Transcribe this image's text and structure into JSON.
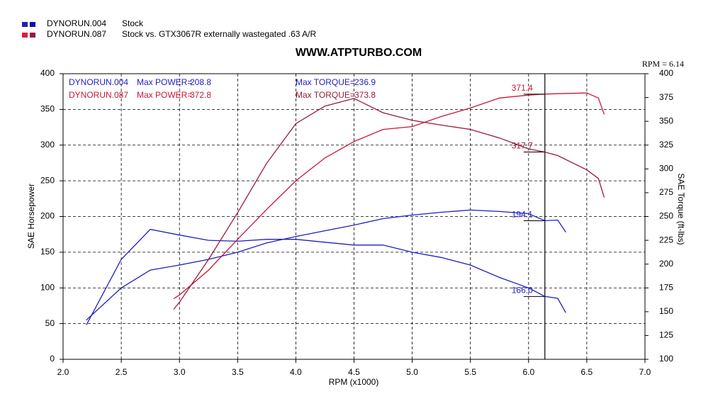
{
  "chart_data": {
    "type": "line",
    "title": "WWW.ATPTURBO.COM",
    "x_label": "RPM (x1000)",
    "y_label": "SAE Horsepower",
    "y2_label": "SAE Torque (ft-lbs)",
    "xlim": [
      2,
      7
    ],
    "ylim": [
      0,
      400
    ],
    "y2lim": [
      100,
      400
    ],
    "xticks": [
      {
        "value": 2,
        "label": "2.0"
      },
      {
        "value": 2.5,
        "label": "2.5"
      },
      {
        "value": 3,
        "label": "3.0"
      },
      {
        "value": 3.5,
        "label": "3.5"
      },
      {
        "value": 4,
        "label": "4.0"
      },
      {
        "value": 4.5,
        "label": "4.5"
      },
      {
        "value": 5,
        "label": "5.0"
      },
      {
        "value": 5.5,
        "label": "5.5"
      },
      {
        "value": 6,
        "label": "6.0"
      },
      {
        "value": 6.5,
        "label": "6.5"
      },
      {
        "value": 7,
        "label": "7.0"
      }
    ],
    "yticks": [
      0,
      50,
      100,
      150,
      200,
      250,
      300,
      350,
      400
    ],
    "y2ticks": [
      100,
      125,
      150,
      175,
      200,
      225,
      250,
      275,
      300,
      325,
      350,
      375,
      400
    ],
    "grid": true,
    "cursor": {
      "value": 6.14,
      "label": "RPM = 6.14"
    },
    "max_power_label": "Max POWER=",
    "max_torque_label": "Max TORQUE=",
    "series": [
      {
        "name": "DYNORUN.004",
        "description": "Stock",
        "color": "#1f1fc4",
        "legend_colors": [
          "#1f1fc4",
          "#1010a0"
        ],
        "max_power": 208.8,
        "max_torque": 236.9,
        "power": {
          "x": [
            2.2,
            2.5,
            2.75,
            3.0,
            3.25,
            3.5,
            3.75,
            4.0,
            4.25,
            4.5,
            4.75,
            5.0,
            5.25,
            5.5,
            5.75,
            6.0,
            6.14,
            6.25,
            6.32
          ],
          "values": [
            55,
            100,
            125,
            132,
            140,
            150,
            163,
            172,
            180,
            188,
            197,
            202,
            206,
            209,
            207,
            204,
            194.1,
            195,
            178
          ],
          "cursor_value": 194.1
        },
        "torque": {
          "axis": "y2",
          "x": [
            2.2,
            2.5,
            2.75,
            3.0,
            3.25,
            3.5,
            3.75,
            4.0,
            4.25,
            4.5,
            4.75,
            5.0,
            5.25,
            5.5,
            5.75,
            6.0,
            6.14,
            6.25,
            6.32
          ],
          "values": [
            136,
            205,
            236.5,
            230.5,
            225,
            224,
            226,
            226,
            223,
            220,
            220,
            212.5,
            207,
            199,
            186,
            175,
            166,
            164,
            149
          ],
          "cursor_value": {
            "value": 166,
            "label": "166.0"
          }
        }
      },
      {
        "name": "DYNORUN.087",
        "description": "Stock vs. GTX3067R externally wastegated .63 A/R",
        "color": "#c8183a",
        "torque_color": "#9a1a3c",
        "legend_colors": [
          "#d81e3c",
          "#9a1a3c"
        ],
        "max_power": 372.8,
        "max_torque": 373.8,
        "power": {
          "x": [
            2.95,
            3.0,
            3.25,
            3.5,
            3.75,
            4.0,
            4.25,
            4.5,
            4.75,
            5.0,
            5.25,
            5.5,
            5.75,
            6.0,
            6.14,
            6.25,
            6.5,
            6.6,
            6.65
          ],
          "values": [
            85,
            90,
            125,
            168,
            210,
            250,
            282,
            305,
            322,
            326,
            340,
            352,
            366,
            370,
            371.4,
            372,
            373,
            366,
            343
          ],
          "cursor_value": 371.4
        },
        "torque": {
          "axis": "y2",
          "x": [
            2.95,
            3.0,
            3.25,
            3.5,
            3.75,
            4.0,
            4.25,
            4.5,
            4.75,
            5.0,
            5.25,
            5.5,
            5.75,
            6.0,
            6.14,
            6.25,
            6.5,
            6.6,
            6.65
          ],
          "values": [
            152.5,
            160,
            205,
            254,
            306,
            347.5,
            366,
            374,
            359,
            351,
            346,
            341.5,
            332.5,
            321,
            317.7,
            314,
            299,
            290,
            270
          ],
          "cursor_value": 317.7
        }
      }
    ]
  }
}
